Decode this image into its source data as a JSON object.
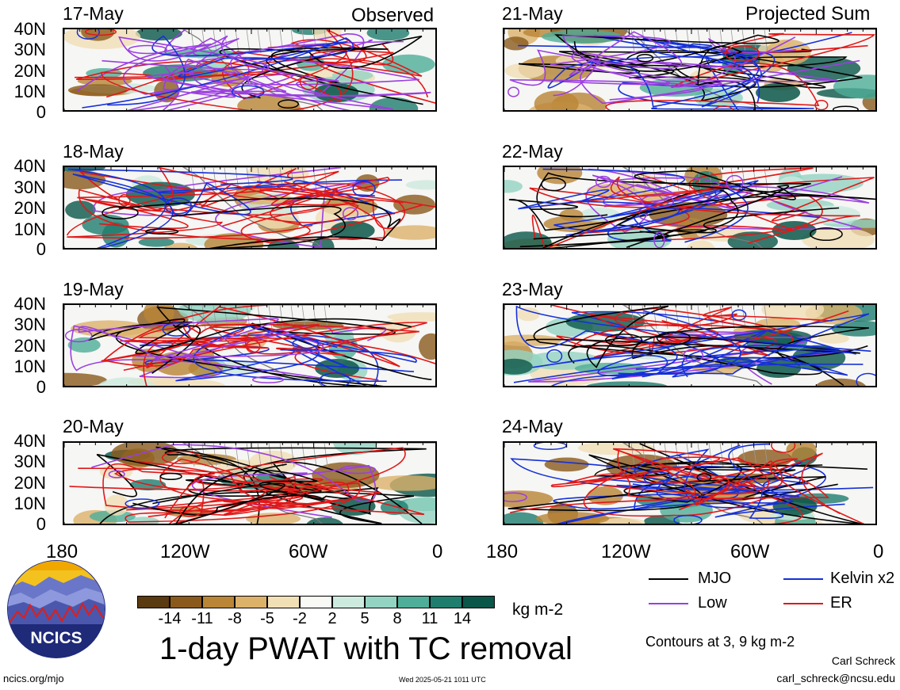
{
  "observed_label": "Observed",
  "projected_label": "Projected Sum",
  "left_dates": [
    "17-May",
    "18-May",
    "19-May",
    "20-May"
  ],
  "right_dates": [
    "21-May",
    "22-May",
    "23-May",
    "24-May"
  ],
  "lat_ticks": [
    "40N",
    "30N",
    "20N",
    "10N",
    "0"
  ],
  "lon_ticks": [
    "180",
    "120W",
    "60W",
    "0"
  ],
  "colorbar": {
    "tick_labels": [
      "-14",
      "-11",
      "-8",
      "-5",
      "-2",
      "2",
      "5",
      "8",
      "11",
      "14"
    ],
    "colors": [
      "#5a3a10",
      "#8a5a1c",
      "#b98536",
      "#dcb26a",
      "#f1dfb6",
      "#f8f8f5",
      "#cdeade",
      "#93d3c2",
      "#4fae98",
      "#1f7d6e",
      "#0a5649"
    ],
    "unit": "kg m-2"
  },
  "legend": [
    {
      "label": "MJO",
      "color": "#000000"
    },
    {
      "label": "Kelvin x2",
      "color": "#1530d8"
    },
    {
      "label": "Low",
      "color": "#9b3ee0"
    },
    {
      "label": "ER",
      "color": "#e01818"
    }
  ],
  "contours_note": "Contours at 3, 9 kg m-2",
  "title": "1-day PWAT with TC removal",
  "logo_text": "NCICS",
  "footer": {
    "left": "ncics.org/mjo",
    "center": "Wed 2025-05-21 1011 UTC",
    "author": "Carl Schreck",
    "email": "carl_schreck@ncsu.edu"
  }
}
